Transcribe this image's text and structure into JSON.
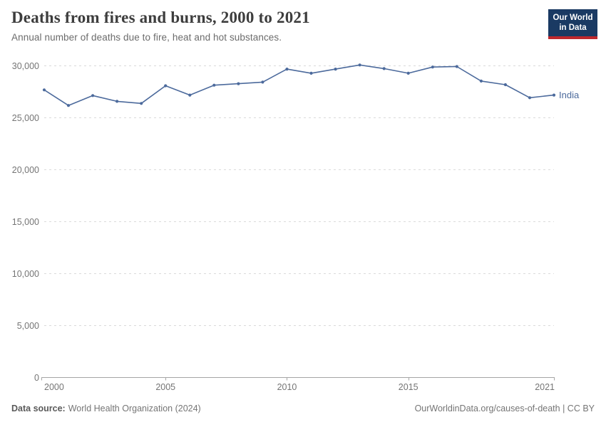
{
  "header": {
    "title": "Deaths from fires and burns, 2000 to 2021",
    "subtitle": "Annual number of deaths due to fire, heat and hot substances."
  },
  "logo": {
    "line1": "Our World",
    "line2": "in Data",
    "bg_color": "#1a3a63",
    "accent_color": "#be282d"
  },
  "chart_data": {
    "type": "line",
    "title": "Deaths from fires and burns, 2000 to 2021",
    "xlabel": "",
    "ylabel": "",
    "x": [
      2000,
      2001,
      2002,
      2003,
      2004,
      2005,
      2006,
      2007,
      2008,
      2009,
      2010,
      2011,
      2012,
      2013,
      2014,
      2015,
      2016,
      2017,
      2018,
      2019,
      2020,
      2021
    ],
    "series": [
      {
        "name": "India",
        "color": "#4c6a9c",
        "values": [
          27650,
          26150,
          27100,
          26550,
          26350,
          28050,
          27150,
          28100,
          28250,
          28400,
          29650,
          29250,
          29650,
          30050,
          29700,
          29250,
          29850,
          29900,
          28500,
          28150,
          26900,
          27150
        ]
      }
    ],
    "ylim": [
      0,
      30000
    ],
    "yticks": [
      0,
      5000,
      10000,
      15000,
      20000,
      25000,
      30000
    ],
    "ytick_labels": [
      "0",
      "5,000",
      "10,000",
      "15,000",
      "20,000",
      "25,000",
      "30,000"
    ],
    "xticks": [
      2000,
      2005,
      2010,
      2015,
      2021
    ],
    "xtick_labels": [
      "2000",
      "2005",
      "2010",
      "2015",
      "2021"
    ],
    "grid": "horizontal-dashed",
    "legend_position": "end-of-line"
  },
  "footer": {
    "source_label": "Data source:",
    "source_value": "World Health Organization (2024)",
    "rights": "OurWorldinData.org/causes-of-death | CC BY"
  }
}
